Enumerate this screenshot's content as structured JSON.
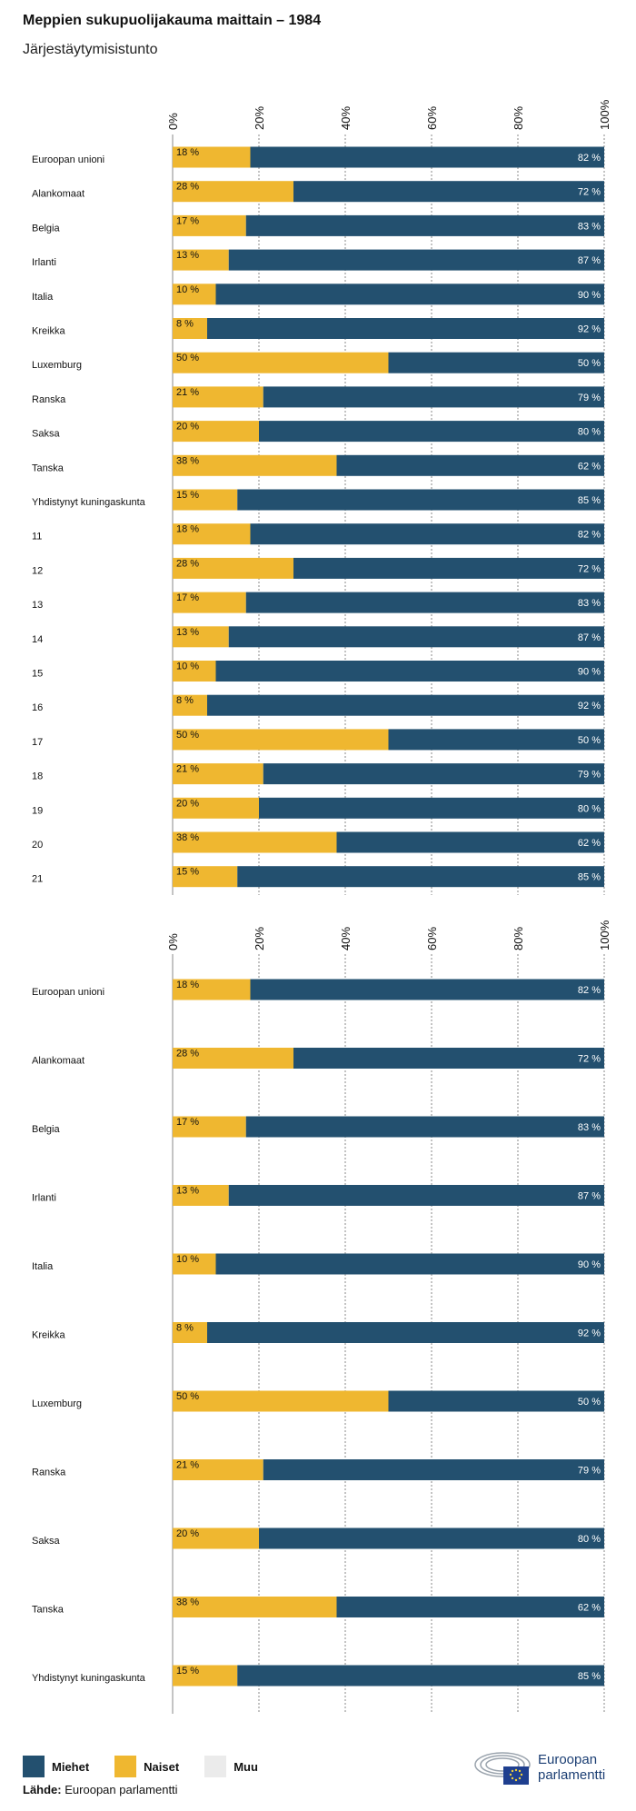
{
  "title": "Meppien sukupuolijakauma maittain – 1984",
  "subtitle": "Järjestäytymisistunto",
  "colors": {
    "men": "#23506f",
    "women": "#efb730",
    "other": "#ebebeb"
  },
  "legend": [
    {
      "name": "Miehet",
      "color": "#23506f"
    },
    {
      "name": "Naiset",
      "color": "#efb730"
    },
    {
      "name": "Muu",
      "color": "#ebebeb"
    }
  ],
  "source": {
    "label": "Lähde:",
    "text": "Euroopan parlamentti"
  },
  "logo": {
    "line1": "Euroopan",
    "line2": "parlamentti"
  },
  "chart_data": [
    {
      "type": "bar",
      "orientation": "horizontal-stacked-100",
      "ticks": [
        "0%",
        "20%",
        "40%",
        "60%",
        "80%",
        "100%"
      ],
      "xlim": [
        0,
        100
      ],
      "categories": [
        "Euroopan unioni",
        "Alankomaat",
        "Belgia",
        "Irlanti",
        "Italia",
        "Kreikka",
        "Luxemburg",
        "Ranska",
        "Saksa",
        "Tanska",
        "Yhdistynyt kuningaskunta",
        "11",
        "12",
        "13",
        "14",
        "15",
        "16",
        "17",
        "18",
        "19",
        "20",
        "21"
      ],
      "series": [
        {
          "name": "Naiset",
          "values": [
            18,
            28,
            17,
            13,
            10,
            8,
            50,
            21,
            20,
            38,
            15,
            18,
            28,
            17,
            13,
            10,
            8,
            50,
            21,
            20,
            38,
            15
          ],
          "labels": [
            "18 %",
            "28 %",
            "17 %",
            "13 %",
            "10 %",
            "8 %",
            "50 %",
            "21 %",
            "20 %",
            "38 %",
            "15 %",
            "18 %",
            "28 %",
            "17 %",
            "13 %",
            "10 %",
            "8 %",
            "50 %",
            "21 %",
            "20 %",
            "38 %",
            "15 %"
          ]
        },
        {
          "name": "Miehet",
          "values": [
            82,
            72,
            83,
            87,
            90,
            92,
            50,
            79,
            80,
            62,
            85,
            82,
            72,
            83,
            87,
            90,
            92,
            50,
            79,
            80,
            62,
            85
          ],
          "labels": [
            "82 %",
            "72 %",
            "83 %",
            "87 %",
            "90 %",
            "92 %",
            "50 %",
            "79 %",
            "80 %",
            "62 %",
            "85 %",
            "82 %",
            "72 %",
            "83 %",
            "87 %",
            "90 %",
            "92 %",
            "50 %",
            "79 %",
            "80 %",
            "62 %",
            "85 %"
          ]
        }
      ]
    },
    {
      "type": "bar",
      "orientation": "horizontal-stacked-100",
      "ticks": [
        "0%",
        "20%",
        "40%",
        "60%",
        "80%",
        "100%"
      ],
      "xlim": [
        0,
        100
      ],
      "categories": [
        "Euroopan unioni",
        "Alankomaat",
        "Belgia",
        "Irlanti",
        "Italia",
        "Kreikka",
        "Luxemburg",
        "Ranska",
        "Saksa",
        "Tanska",
        "Yhdistynyt kuningaskunta"
      ],
      "series": [
        {
          "name": "Naiset",
          "values": [
            18,
            28,
            17,
            13,
            10,
            8,
            50,
            21,
            20,
            38,
            15
          ],
          "labels": [
            "18 %",
            "28 %",
            "17 %",
            "13 %",
            "10 %",
            "8 %",
            "50 %",
            "21 %",
            "20 %",
            "38 %",
            "15 %"
          ]
        },
        {
          "name": "Miehet",
          "values": [
            82,
            72,
            83,
            87,
            90,
            92,
            50,
            79,
            80,
            62,
            85
          ],
          "labels": [
            "82 %",
            "72 %",
            "83 %",
            "87 %",
            "90 %",
            "92 %",
            "50 %",
            "79 %",
            "80 %",
            "62 %",
            "85 %"
          ]
        }
      ]
    }
  ]
}
